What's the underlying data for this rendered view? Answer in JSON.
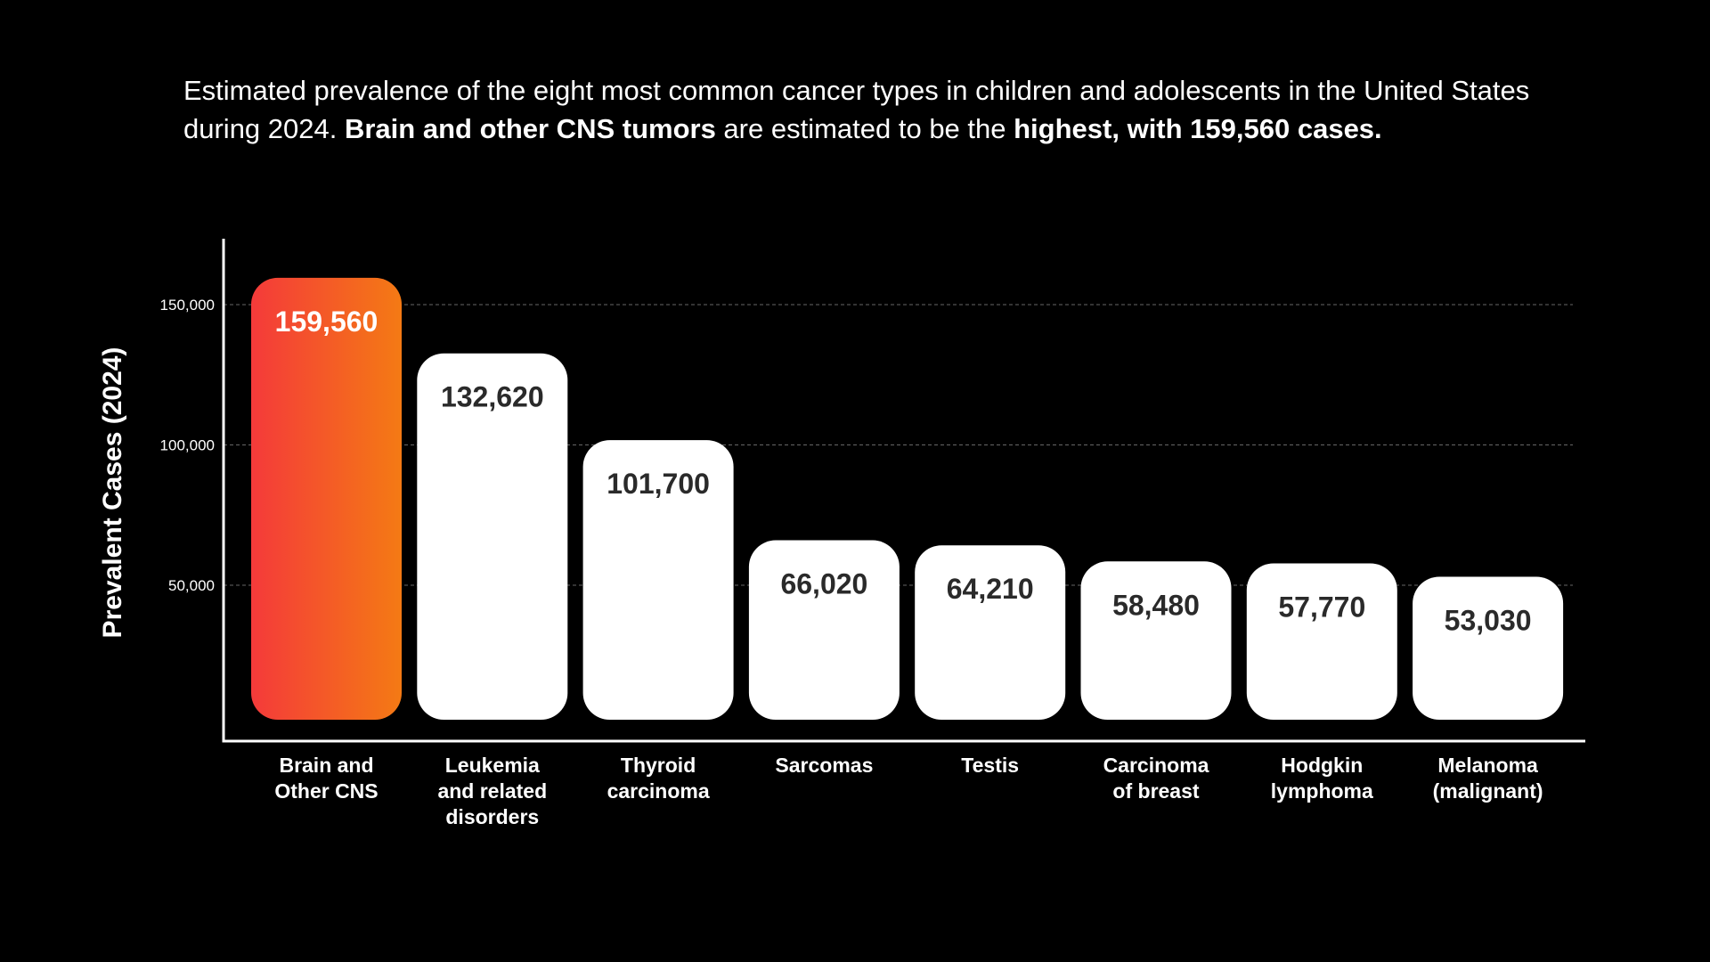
{
  "caption": {
    "part1": "Estimated prevalence of the eight most common cancer types in children and adolescents in the United States during 2024. ",
    "bold1": "Brain and other CNS tumors",
    "part2": " are estimated to be the ",
    "bold2": "highest, with 159,560 cases."
  },
  "colors": {
    "background": "#000000",
    "bar_default": "#ffffff",
    "bar_highlight_start": "#f43a3a",
    "bar_highlight_end": "#f47a14",
    "value_text_default": "#2a2a2a",
    "value_text_highlight": "#ffffff",
    "grid": "#666666",
    "axis": "#ffffff"
  },
  "chart_data": {
    "type": "bar",
    "title": "",
    "xlabel": "",
    "ylabel": "Prevalent Cases (2024)",
    "ylim": [
      0,
      172000
    ],
    "yticks": [
      50000,
      100000,
      150000
    ],
    "ytick_labels": [
      "50,000",
      "100,000",
      "150,000"
    ],
    "grid": true,
    "highlight_index": 0,
    "categories": [
      [
        "Brain and",
        "Other CNS"
      ],
      [
        "Leukemia",
        "and related",
        "disorders"
      ],
      [
        "Thyroid",
        "carcinoma"
      ],
      [
        "Sarcomas"
      ],
      [
        "Testis"
      ],
      [
        "Carcinoma",
        "of breast"
      ],
      [
        "Hodgkin",
        "lymphoma"
      ],
      [
        "Melanoma",
        "(malignant)"
      ]
    ],
    "values": [
      159560,
      132620,
      101700,
      66020,
      64210,
      58480,
      57770,
      53030
    ],
    "value_labels": [
      "159,560",
      "132,620",
      "101,700",
      "66,020",
      "64,210",
      "58,480",
      "57,770",
      "53,030"
    ]
  }
}
